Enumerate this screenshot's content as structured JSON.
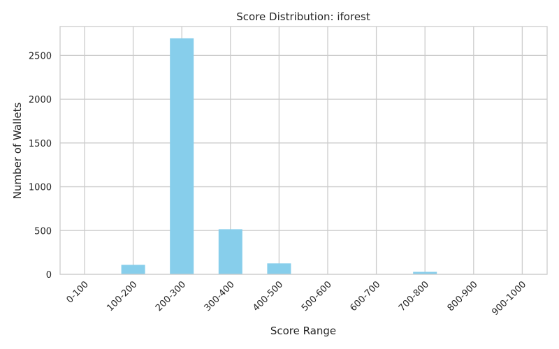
{
  "chart_data": {
    "type": "bar",
    "title": "Score Distribution: iforest",
    "xlabel": "Score Range",
    "ylabel": "Number of Wallets",
    "categories": [
      "0-100",
      "100-200",
      "200-300",
      "300-400",
      "400-500",
      "500-600",
      "600-700",
      "700-800",
      "800-900",
      "900-1000"
    ],
    "values": [
      0,
      108,
      2695,
      515,
      125,
      0,
      0,
      28,
      0,
      0
    ],
    "ylim": [
      0,
      2830
    ],
    "yticks": [
      0,
      500,
      1000,
      1500,
      2000,
      2500
    ],
    "grid": true,
    "legend": "none",
    "colors": {
      "bar": "#87ceeb",
      "grid": "#cccccc",
      "text": "#262626"
    }
  }
}
